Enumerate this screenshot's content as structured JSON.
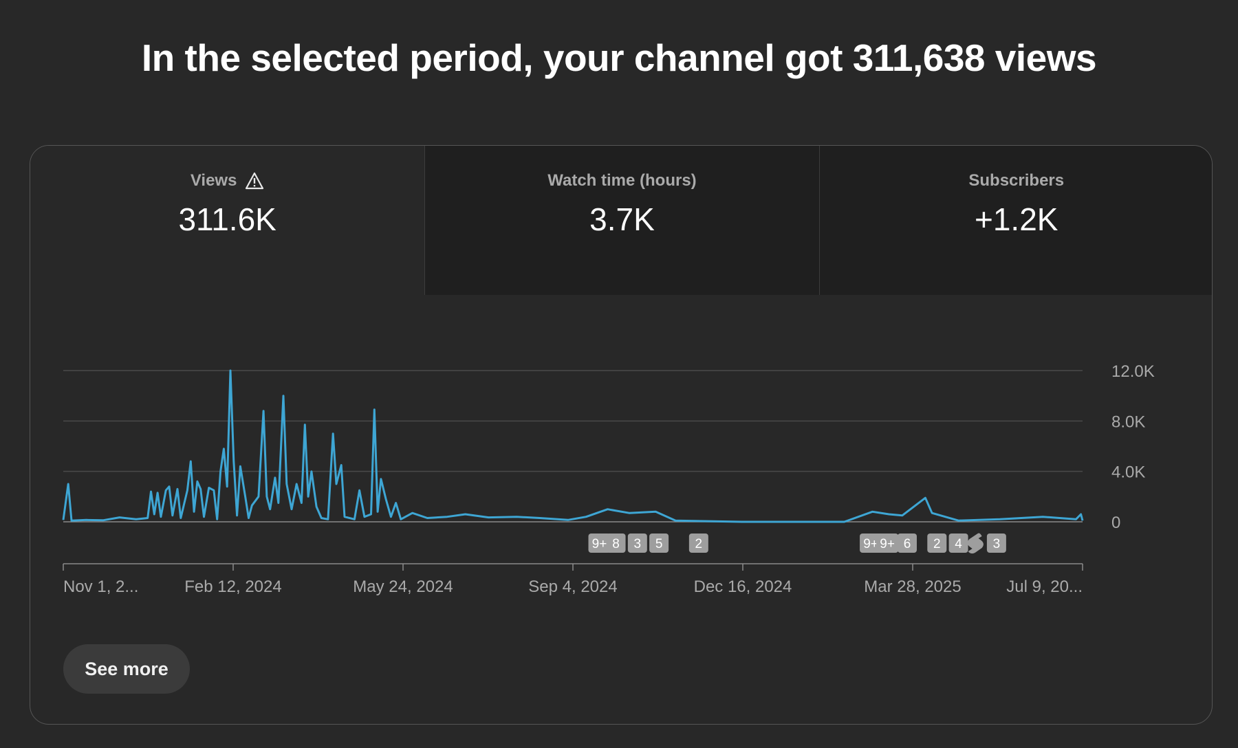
{
  "headline": "In the selected period, your channel got 311,638 views",
  "tabs": [
    {
      "label": "Views",
      "value": "311.6K",
      "icon": "warning-icon",
      "active": true
    },
    {
      "label": "Watch time (hours)",
      "value": "3.7K",
      "active": false
    },
    {
      "label": "Subscribers",
      "value": "+1.2K",
      "active": false
    }
  ],
  "see_more_label": "See more",
  "colors": {
    "line": "#3ea6d4",
    "background": "#282828",
    "tab_inactive": "#1f1f1f",
    "marker": "#9e9e9e"
  },
  "chart_data": {
    "type": "line",
    "title": "",
    "xlabel": "",
    "ylabel": "",
    "ylim": [
      0,
      12000
    ],
    "yticks": [
      0,
      4000,
      8000,
      12000
    ],
    "ytick_labels": [
      "0",
      "4.0K",
      "8.0K",
      "12.0K"
    ],
    "xlim": [
      "2023-11-01",
      "2025-07-09"
    ],
    "xtick_labels": [
      "Nov 1, 2...",
      "Feb 12, 2024",
      "May 24, 2024",
      "Sep 4, 2024",
      "Dec 16, 2024",
      "Mar 28, 2025",
      "Jul 9, 20..."
    ],
    "grid": true,
    "series": [
      {
        "values": [
          {
            "x": "2023-11-01",
            "y": 150
          },
          {
            "x": "2023-11-04",
            "y": 3000
          },
          {
            "x": "2023-11-06",
            "y": 100
          },
          {
            "x": "2023-11-15",
            "y": 150
          },
          {
            "x": "2023-11-25",
            "y": 120
          },
          {
            "x": "2023-12-05",
            "y": 350
          },
          {
            "x": "2023-12-15",
            "y": 200
          },
          {
            "x": "2023-12-22",
            "y": 300
          },
          {
            "x": "2023-12-24",
            "y": 2400
          },
          {
            "x": "2023-12-26",
            "y": 600
          },
          {
            "x": "2023-12-28",
            "y": 2300
          },
          {
            "x": "2023-12-30",
            "y": 400
          },
          {
            "x": "2024-01-02",
            "y": 2500
          },
          {
            "x": "2024-01-04",
            "y": 2800
          },
          {
            "x": "2024-01-06",
            "y": 500
          },
          {
            "x": "2024-01-09",
            "y": 2600
          },
          {
            "x": "2024-01-11",
            "y": 300
          },
          {
            "x": "2024-01-15",
            "y": 2500
          },
          {
            "x": "2024-01-17",
            "y": 4800
          },
          {
            "x": "2024-01-19",
            "y": 800
          },
          {
            "x": "2024-01-21",
            "y": 3200
          },
          {
            "x": "2024-01-23",
            "y": 2600
          },
          {
            "x": "2024-01-25",
            "y": 400
          },
          {
            "x": "2024-01-28",
            "y": 2700
          },
          {
            "x": "2024-01-31",
            "y": 2500
          },
          {
            "x": "2024-02-02",
            "y": 200
          },
          {
            "x": "2024-02-04",
            "y": 4000
          },
          {
            "x": "2024-02-06",
            "y": 5800
          },
          {
            "x": "2024-02-08",
            "y": 2800
          },
          {
            "x": "2024-02-10",
            "y": 12000
          },
          {
            "x": "2024-02-12",
            "y": 4800
          },
          {
            "x": "2024-02-14",
            "y": 500
          },
          {
            "x": "2024-02-16",
            "y": 4400
          },
          {
            "x": "2024-02-19",
            "y": 2000
          },
          {
            "x": "2024-02-21",
            "y": 300
          },
          {
            "x": "2024-02-23",
            "y": 1300
          },
          {
            "x": "2024-02-27",
            "y": 2000
          },
          {
            "x": "2024-03-01",
            "y": 8800
          },
          {
            "x": "2024-03-03",
            "y": 2000
          },
          {
            "x": "2024-03-05",
            "y": 1000
          },
          {
            "x": "2024-03-08",
            "y": 3500
          },
          {
            "x": "2024-03-10",
            "y": 1500
          },
          {
            "x": "2024-03-13",
            "y": 10000
          },
          {
            "x": "2024-03-15",
            "y": 3000
          },
          {
            "x": "2024-03-18",
            "y": 1000
          },
          {
            "x": "2024-03-21",
            "y": 3000
          },
          {
            "x": "2024-03-24",
            "y": 1500
          },
          {
            "x": "2024-03-26",
            "y": 7700
          },
          {
            "x": "2024-03-28",
            "y": 2000
          },
          {
            "x": "2024-03-30",
            "y": 4000
          },
          {
            "x": "2024-04-02",
            "y": 1200
          },
          {
            "x": "2024-04-05",
            "y": 300
          },
          {
            "x": "2024-04-09",
            "y": 200
          },
          {
            "x": "2024-04-12",
            "y": 7000
          },
          {
            "x": "2024-04-14",
            "y": 3000
          },
          {
            "x": "2024-04-17",
            "y": 4500
          },
          {
            "x": "2024-04-19",
            "y": 400
          },
          {
            "x": "2024-04-25",
            "y": 200
          },
          {
            "x": "2024-04-28",
            "y": 2500
          },
          {
            "x": "2024-05-01",
            "y": 400
          },
          {
            "x": "2024-05-05",
            "y": 600
          },
          {
            "x": "2024-05-07",
            "y": 8900
          },
          {
            "x": "2024-05-09",
            "y": 800
          },
          {
            "x": "2024-05-11",
            "y": 3400
          },
          {
            "x": "2024-05-14",
            "y": 1800
          },
          {
            "x": "2024-05-17",
            "y": 400
          },
          {
            "x": "2024-05-20",
            "y": 1500
          },
          {
            "x": "2024-05-23",
            "y": 200
          },
          {
            "x": "2024-05-30",
            "y": 700
          },
          {
            "x": "2024-06-08",
            "y": 300
          },
          {
            "x": "2024-06-20",
            "y": 400
          },
          {
            "x": "2024-07-01",
            "y": 600
          },
          {
            "x": "2024-07-15",
            "y": 350
          },
          {
            "x": "2024-08-01",
            "y": 400
          },
          {
            "x": "2024-08-15",
            "y": 300
          },
          {
            "x": "2024-09-01",
            "y": 150
          },
          {
            "x": "2024-09-12",
            "y": 400
          },
          {
            "x": "2024-09-25",
            "y": 1000
          },
          {
            "x": "2024-10-08",
            "y": 700
          },
          {
            "x": "2024-10-24",
            "y": 800
          },
          {
            "x": "2024-11-05",
            "y": 100
          },
          {
            "x": "2024-11-25",
            "y": 50
          },
          {
            "x": "2024-12-15",
            "y": 0
          },
          {
            "x": "2025-01-15",
            "y": 0
          },
          {
            "x": "2025-02-15",
            "y": 0
          },
          {
            "x": "2025-03-04",
            "y": 800
          },
          {
            "x": "2025-03-14",
            "y": 600
          },
          {
            "x": "2025-03-22",
            "y": 500
          },
          {
            "x": "2025-04-05",
            "y": 1900
          },
          {
            "x": "2025-04-09",
            "y": 700
          },
          {
            "x": "2025-04-25",
            "y": 100
          },
          {
            "x": "2025-05-20",
            "y": 200
          },
          {
            "x": "2025-06-15",
            "y": 400
          },
          {
            "x": "2025-07-05",
            "y": 200
          },
          {
            "x": "2025-07-08",
            "y": 600
          },
          {
            "x": "2025-07-09",
            "y": 100
          }
        ]
      }
    ],
    "annotations": [
      {
        "x": "2024-09-20",
        "label": "9+"
      },
      {
        "x": "2024-09-30",
        "label": "8"
      },
      {
        "x": "2024-10-13",
        "label": "3"
      },
      {
        "x": "2024-10-26",
        "label": "5"
      },
      {
        "x": "2024-11-19",
        "label": "2"
      },
      {
        "x": "2025-03-03",
        "label": "9+"
      },
      {
        "x": "2025-03-13",
        "label": "9+"
      },
      {
        "x": "2025-03-25",
        "label": "6"
      },
      {
        "x": "2025-04-12",
        "label": "2"
      },
      {
        "x": "2025-04-25",
        "label": "4"
      },
      {
        "x": "2025-05-05",
        "label": "",
        "icon": "shorts-icon"
      },
      {
        "x": "2025-05-18",
        "label": "3"
      }
    ]
  }
}
